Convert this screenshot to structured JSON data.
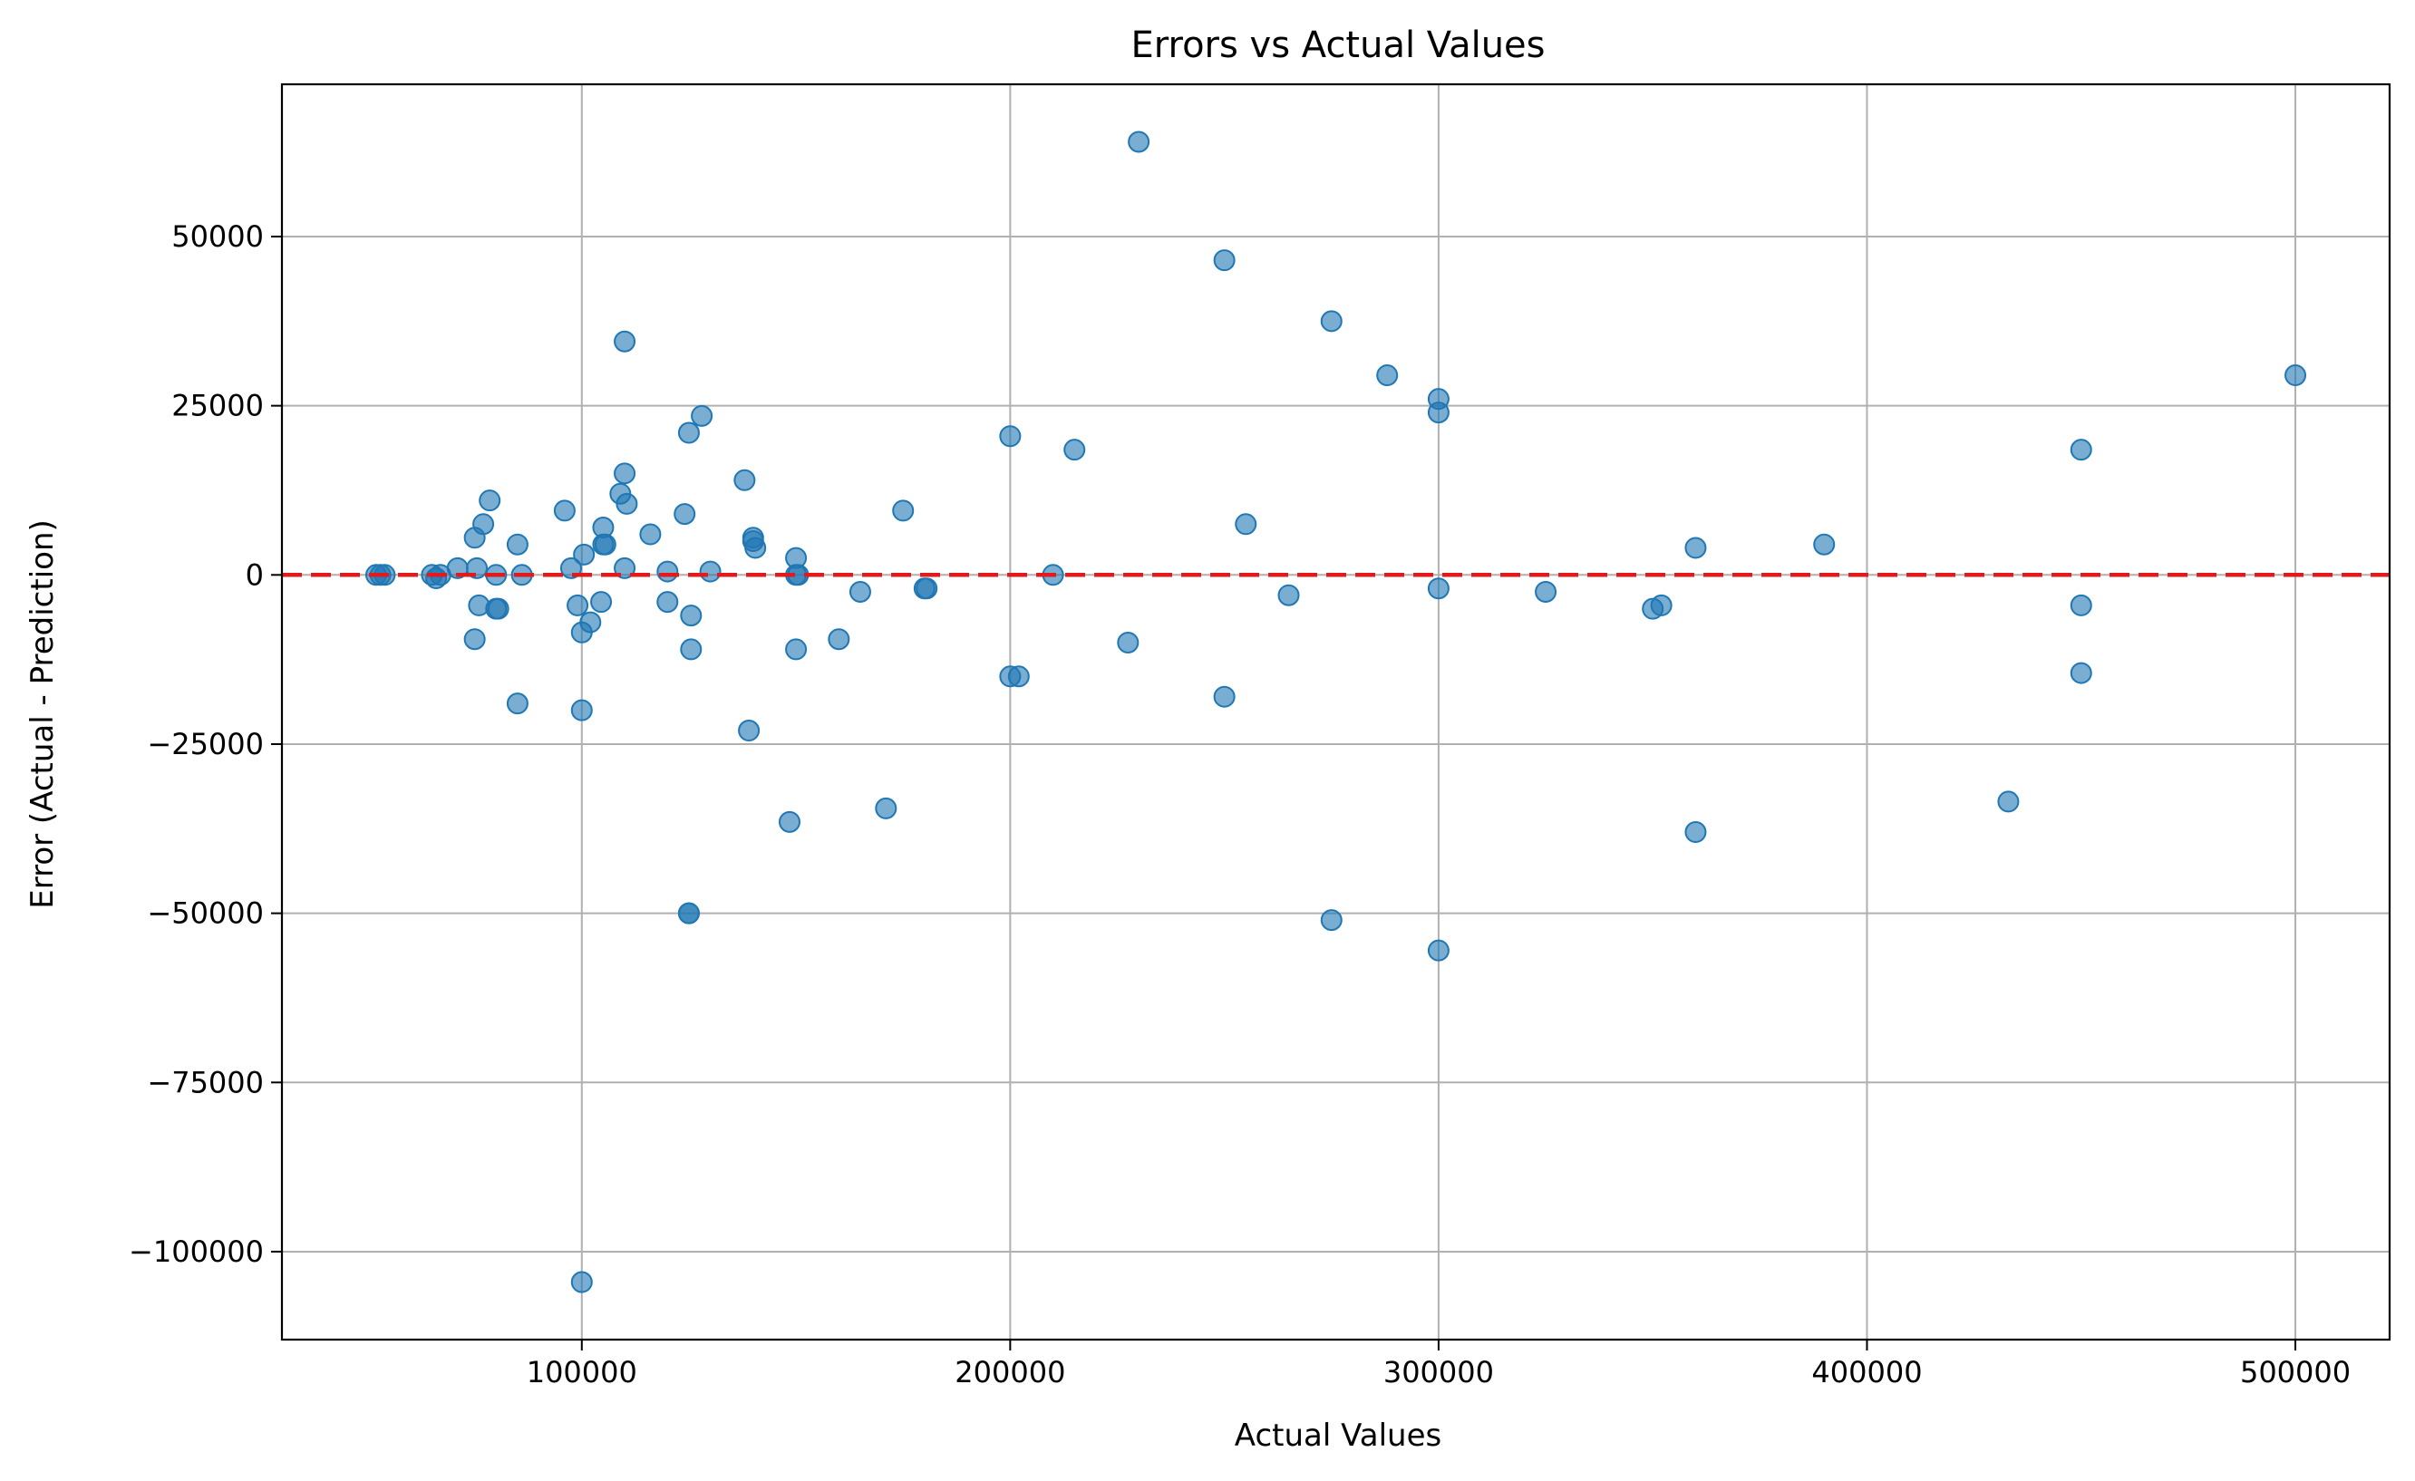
{
  "chart_data": {
    "type": "scatter",
    "title": "Errors vs Actual Values",
    "xlabel": "Actual Values",
    "ylabel": "Error (Actual - Prediction)",
    "xlim": [
      30000,
      522000
    ],
    "ylim": [
      -113000,
      72500
    ],
    "x_ticks": [
      100000,
      200000,
      300000,
      400000,
      500000
    ],
    "x_tick_labels": [
      "100000",
      "200000",
      "300000",
      "400000",
      "500000"
    ],
    "y_ticks": [
      -100000,
      -75000,
      -50000,
      -25000,
      0,
      25000,
      50000
    ],
    "y_tick_labels": [
      "−100000",
      "−75000",
      "−50000",
      "−25000",
      "0",
      "25000",
      "50000"
    ],
    "grid": true,
    "reference_line": {
      "y": 0,
      "style": "dashed",
      "color": "#e31a1c"
    },
    "point_color": "#1f77b4",
    "points": [
      [
        52000,
        0
      ],
      [
        53000,
        0
      ],
      [
        54000,
        0
      ],
      [
        65000,
        0
      ],
      [
        66000,
        -500
      ],
      [
        67000,
        0
      ],
      [
        71000,
        1000
      ],
      [
        75000,
        5500
      ],
      [
        75500,
        1000
      ],
      [
        76000,
        -4500
      ],
      [
        77000,
        7500
      ],
      [
        78500,
        11000
      ],
      [
        80000,
        0
      ],
      [
        80000,
        -5000
      ],
      [
        80500,
        -5000
      ],
      [
        85000,
        4500
      ],
      [
        85000,
        -19000
      ],
      [
        86000,
        0
      ],
      [
        75000,
        -9500
      ],
      [
        96000,
        9500
      ],
      [
        97500,
        1000
      ],
      [
        99000,
        -4500
      ],
      [
        100000,
        -8500
      ],
      [
        100500,
        3000
      ],
      [
        100000,
        -20000
      ],
      [
        102000,
        -7000
      ],
      [
        104500,
        -4000
      ],
      [
        105000,
        4500
      ],
      [
        105000,
        7000
      ],
      [
        105500,
        4500
      ],
      [
        109000,
        12000
      ],
      [
        110000,
        1000
      ],
      [
        110500,
        10500
      ],
      [
        110000,
        15000
      ],
      [
        110000,
        34500
      ],
      [
        116000,
        6000
      ],
      [
        120000,
        500
      ],
      [
        120000,
        -4000
      ],
      [
        124000,
        9000
      ],
      [
        125500,
        -6000
      ],
      [
        125500,
        -11000
      ],
      [
        125000,
        21000
      ],
      [
        128000,
        23500
      ],
      [
        130000,
        500
      ],
      [
        138000,
        14000
      ],
      [
        139000,
        -23000
      ],
      [
        140000,
        5000
      ],
      [
        140500,
        4000
      ],
      [
        140000,
        5500
      ],
      [
        148500,
        -36500
      ],
      [
        150000,
        2500
      ],
      [
        150000,
        0
      ],
      [
        150500,
        0
      ],
      [
        150000,
        -11000
      ],
      [
        160000,
        -9500
      ],
      [
        165000,
        -2500
      ],
      [
        171000,
        -34500
      ],
      [
        175000,
        9500
      ],
      [
        180000,
        -2000
      ],
      [
        180500,
        -2000
      ],
      [
        200000,
        20500
      ],
      [
        200000,
        -15000
      ],
      [
        202000,
        -15000
      ],
      [
        210000,
        0
      ],
      [
        215000,
        18500
      ],
      [
        227500,
        -10000
      ],
      [
        230000,
        64000
      ],
      [
        250000,
        46500
      ],
      [
        250000,
        -18000
      ],
      [
        255000,
        7500
      ],
      [
        265000,
        -3000
      ],
      [
        275000,
        37500
      ],
      [
        275000,
        -51000
      ],
      [
        288000,
        29500
      ],
      [
        300000,
        26000
      ],
      [
        300000,
        24000
      ],
      [
        300000,
        -2000
      ],
      [
        300000,
        -55500
      ],
      [
        325000,
        -2500
      ],
      [
        350000,
        -5000
      ],
      [
        352000,
        -4500
      ],
      [
        360000,
        4000
      ],
      [
        360000,
        -38000
      ],
      [
        390000,
        4500
      ],
      [
        433000,
        -33500
      ],
      [
        450000,
        18500
      ],
      [
        450000,
        -4500
      ],
      [
        450000,
        -14500
      ],
      [
        500000,
        29500
      ],
      [
        100000,
        -104500
      ],
      [
        125000,
        -50000
      ],
      [
        125000,
        -50000
      ]
    ]
  }
}
